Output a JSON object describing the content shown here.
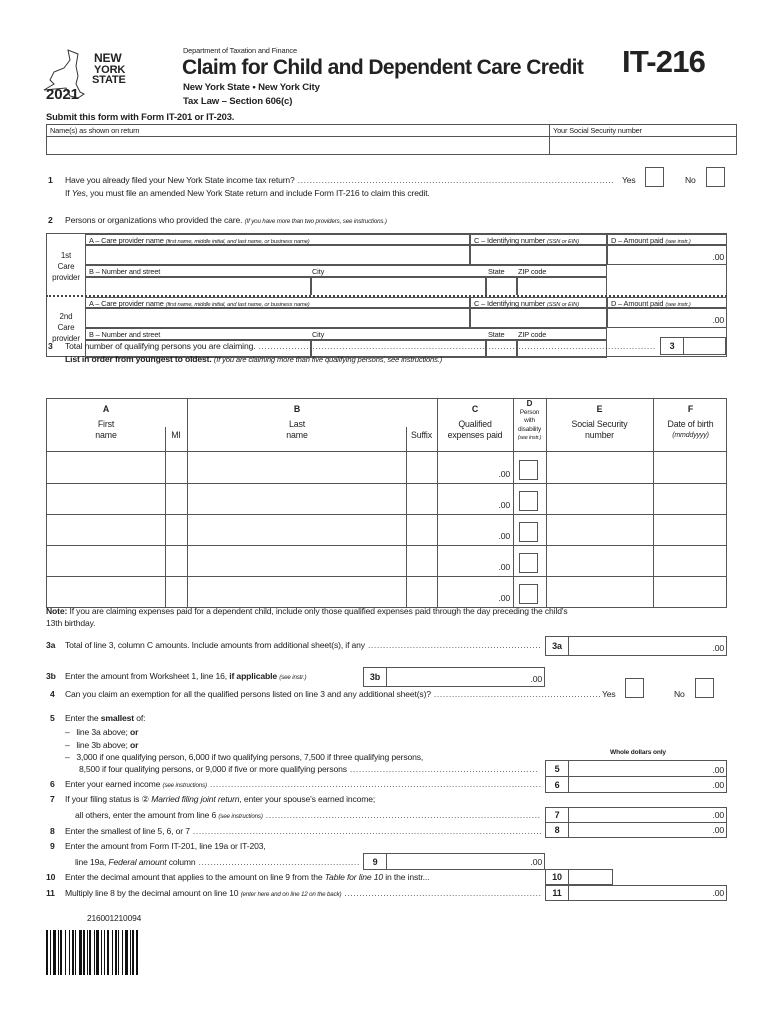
{
  "header": {
    "logo_text": "NEW YORK STATE",
    "year": "2021",
    "department": "Department of Taxation and Finance",
    "title": "Claim for Child and Dependent Care Credit",
    "subtitle": "New York State  •  New York City",
    "tax_law": "Tax Law – Section 606(c)",
    "form_number": "IT-216",
    "submit_note": "Submit this form with Form IT-201 or IT-203."
  },
  "taxpayer": {
    "name_label": "Name(s) as shown on return",
    "ssn_label": "Your Social Security number"
  },
  "line1": {
    "num": "1",
    "text": "Have you already filed your New York State income tax return?",
    "note_pre": "If ",
    "note_yes": "Yes",
    "note_post": ", you must file an amended New York State return and include Form IT-216 to claim this credit.",
    "yes": "Yes",
    "no": "No"
  },
  "line2": {
    "num": "2",
    "text": "Persons or organizations who provided the care.",
    "note": "(If you have more than two providers, see instructions.)",
    "providers": [
      {
        "label_1": "1st",
        "label_2": "Care",
        "label_3": "provider",
        "amount": ".00"
      },
      {
        "label_1": "2nd",
        "label_2": "Care",
        "label_3": "provider",
        "amount": ".00"
      }
    ],
    "col_a": "A – Care provider name",
    "col_a_note": "(first name, middle initial, and last name, or business name)",
    "col_c": "C – Identifying number",
    "col_c_note": "(SSN or EIN)",
    "col_d": "D – Amount paid",
    "col_d_note": "(see instr.)",
    "col_b": "B – Number and street",
    "city": "City",
    "state": "State",
    "zip": "ZIP code"
  },
  "line3": {
    "num": "3",
    "text": "Total number of qualifying persons you are claiming.",
    "box_label": "3",
    "list_bold": "List in order from youngest to oldest.",
    "list_note": "(If you are claiming more than five qualifying persons, see instructions.)"
  },
  "persons": {
    "col_a": "A",
    "first_1": "First",
    "first_2": "name",
    "mi": "MI",
    "col_b": "B",
    "last_1": "Last",
    "last_2": "name",
    "suffix": "Suffix",
    "col_c": "C",
    "qual_1": "Qualified",
    "qual_2": "expenses paid",
    "col_d": "D",
    "dis_1": "Person",
    "dis_2": "with",
    "dis_3": "disability",
    "dis_4": "(see instr.)",
    "col_e": "E",
    "ssn_1": "Social Security",
    "ssn_2": "number",
    "col_f": "F",
    "dob_1": "Date of birth",
    "dob_2": "(mmddyyyy)",
    "rows": [
      {
        "expenses": ".00"
      },
      {
        "expenses": ".00"
      },
      {
        "expenses": ".00"
      },
      {
        "expenses": ".00"
      },
      {
        "expenses": ".00"
      }
    ]
  },
  "note": {
    "bold": "Note:",
    "text": " If you are claiming expenses paid for a dependent child, include only those qualified expenses paid through the day preceding the child's",
    "text2": "13th birthday."
  },
  "line3a": {
    "num": "3a",
    "text": "Total of line 3, column C amounts. Include amounts from additional sheet(s), if any",
    "box": "3a",
    "amount": ".00"
  },
  "line3b": {
    "num": "3b",
    "text": "Enter the amount from Worksheet 1, line 16, ",
    "bold": "if applicable",
    "note": "(see instr.)",
    "box": "3b",
    "amount": ".00"
  },
  "line4": {
    "num": "4",
    "text": "Can you claim an exemption for all the qualified persons listed on line 3 and any additional sheet(s)?",
    "yes": "Yes",
    "no": "No"
  },
  "line5": {
    "num": "5",
    "pre": "Enter the ",
    "bold": "smallest",
    "post": " of:",
    "opt1": "line 3a above; ",
    "opt2": "line 3b above; ",
    "or": "or",
    "opt3a": "3,000 if one qualifying person, 6,000 if two qualifying persons, 7,500 if three qualifying persons,",
    "opt3b": "8,500 if four qualifying persons, or 9,000 if five or more qualifying persons",
    "dash": "–",
    "whole_dollars": "Whole dollars only",
    "box": "5",
    "amount": ".00"
  },
  "line6": {
    "num": "6",
    "text": "Enter your earned income ",
    "note": "(see instructions)",
    "box": "6",
    "amount": ".00"
  },
  "line7": {
    "num": "7",
    "pre": "If your filing status is ② ",
    "ital": "Married filing joint return",
    "post": ", enter your spouse's earned income;",
    "text2": "all others, enter the amount from line 6 ",
    "note": "(see instructions)",
    "box": "7",
    "amount": ".00"
  },
  "line8": {
    "num": "8",
    "text": "Enter the smallest of line 5, 6, or 7",
    "box": "8",
    "amount": ".00"
  },
  "line9": {
    "num": "9",
    "text": "Enter the amount from Form IT-201, line 19a or IT-203,",
    "text2_pre": "line 19a, ",
    "text2_ital": "Federal amount",
    "text2_post": " column",
    "box": "9",
    "amount": ".00"
  },
  "line10": {
    "num": "10",
    "pre": "Enter the decimal amount that applies to the amount on line 9 from the ",
    "ital": "Table for line 10",
    "post": " in the instr...",
    "box": "10"
  },
  "line11": {
    "num": "11",
    "text": "Multiply line 8 by the decimal amount on line 10 ",
    "note": "(enter here and on line 12 on the back)",
    "box": "11",
    "amount": ".00"
  },
  "barcode": {
    "number": "216001210094"
  }
}
